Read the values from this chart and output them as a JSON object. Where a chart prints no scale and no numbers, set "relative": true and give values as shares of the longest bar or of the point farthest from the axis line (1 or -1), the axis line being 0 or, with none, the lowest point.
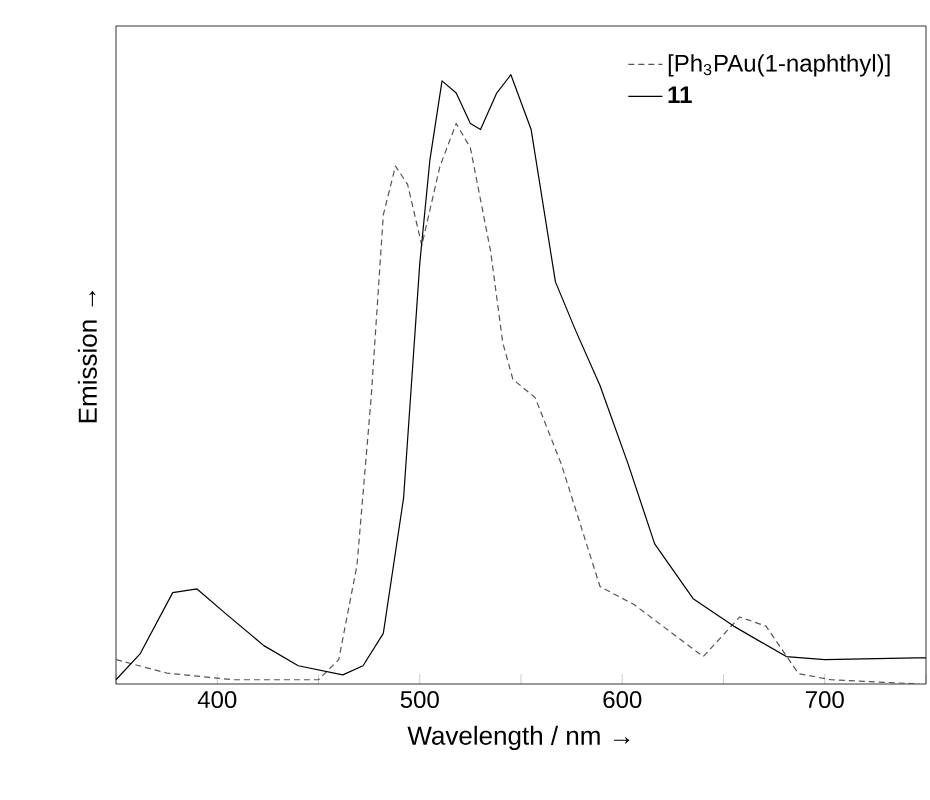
{
  "chart_data": {
    "type": "line",
    "relative": true,
    "xlabel": "Wavelength / nm →",
    "ylabel": "Emission →",
    "x": [
      350,
      362,
      378,
      390,
      404,
      423,
      440,
      462,
      472,
      482,
      492,
      500,
      505,
      511,
      518,
      525,
      530,
      538,
      545,
      555,
      567,
      577,
      589,
      603,
      616,
      635,
      655,
      681,
      700,
      745,
      750
    ],
    "series": [
      {
        "name": "[Ph$_{3}$PAu(1-naphthyl)]",
        "color": "#555555",
        "line_style": "dashed",
        "x": [
          350,
          375,
          408,
          450,
          460,
          469,
          476,
          482,
          488,
          494,
          501,
          510,
          518,
          525,
          535,
          541,
          546,
          557,
          570,
          589,
          606,
          640,
          658,
          671,
          687,
          703,
          747
        ],
        "values": [
          0.04,
          0.018,
          0.007,
          0.007,
          0.04,
          0.195,
          0.47,
          0.77,
          0.85,
          0.82,
          0.72,
          0.85,
          0.92,
          0.88,
          0.71,
          0.56,
          0.5,
          0.47,
          0.36,
          0.16,
          0.13,
          0.045,
          0.11,
          0.095,
          0.017,
          0.007,
          0.0
        ]
      },
      {
        "name": "**11**",
        "color": "#000000",
        "line_style": "solid",
        "values": [
          0.007,
          0.05,
          0.15,
          0.156,
          0.116,
          0.063,
          0.03,
          0.015,
          0.03,
          0.083,
          0.305,
          0.69,
          0.86,
          0.99,
          0.97,
          0.92,
          0.91,
          0.97,
          1.0,
          0.91,
          0.66,
          0.58,
          0.49,
          0.36,
          0.23,
          0.14,
          0.095,
          0.045,
          0.04,
          0.043,
          0.043
        ]
      }
    ],
    "xlim": [
      350,
      750
    ],
    "xticks": [
      {
        "value": 350,
        "label": null
      },
      400,
      {
        "value": 450,
        "label": null
      },
      500,
      {
        "value": 550,
        "label": null
      },
      600,
      {
        "value": 650,
        "label": null
      },
      700,
      {
        "value": 750,
        "label": null
      }
    ],
    "legend": "top right",
    "grid": false,
    "marker": "none"
  }
}
